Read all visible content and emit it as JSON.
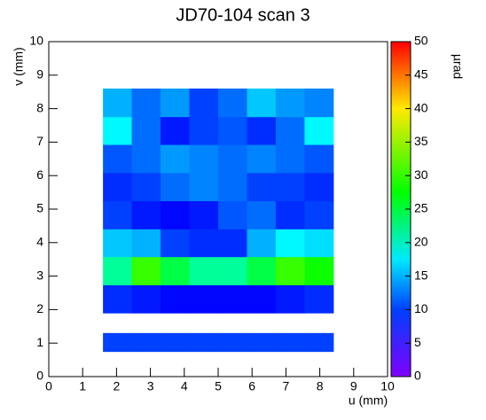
{
  "chart_data": {
    "type": "heatmap",
    "title": "JD70-104 scan 3",
    "x_label": "u (mm)",
    "y_label": "v (mm)",
    "z_label": "µrad",
    "xlim": [
      0,
      10
    ],
    "ylim": [
      0,
      10
    ],
    "zlim": [
      0,
      50
    ],
    "xticks": [
      0,
      1,
      2,
      3,
      4,
      5,
      6,
      7,
      8,
      9,
      10
    ],
    "yticks": [
      0,
      1,
      2,
      3,
      4,
      5,
      6,
      7,
      8,
      9,
      10
    ],
    "zticks": [
      0,
      5,
      10,
      15,
      20,
      25,
      30,
      35,
      40,
      45,
      50
    ],
    "x_edges": [
      1.6,
      2.45,
      3.3,
      4.15,
      5.0,
      5.85,
      6.7,
      7.55,
      8.4
    ],
    "y_edges": [
      0.75,
      1.3,
      1.9,
      2.74,
      3.58,
      4.41,
      5.25,
      6.09,
      6.93,
      7.76,
      8.6
    ],
    "z": [
      [
        10,
        10,
        10,
        10,
        10,
        10,
        10,
        10
      ],
      [
        null,
        null,
        null,
        null,
        null,
        null,
        null,
        null
      ],
      [
        9,
        8,
        7,
        7,
        7,
        7,
        8,
        9
      ],
      [
        22,
        30,
        25,
        22,
        22,
        25,
        30,
        28
      ],
      [
        16,
        15,
        10,
        9,
        9,
        15,
        18,
        17
      ],
      [
        10,
        8,
        7,
        8,
        11,
        12,
        9,
        10
      ],
      [
        9,
        10,
        12,
        13,
        12,
        10,
        10,
        9
      ],
      [
        11,
        12,
        14,
        13,
        12,
        13,
        12,
        11
      ],
      [
        18,
        12,
        8,
        10,
        11,
        9,
        12,
        18
      ],
      [
        15,
        12,
        14,
        10,
        12,
        16,
        14,
        13
      ]
    ]
  }
}
